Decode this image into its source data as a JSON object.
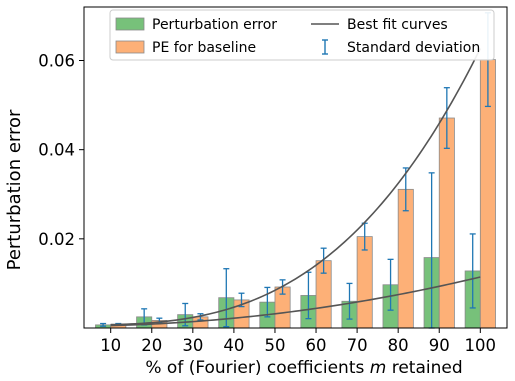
{
  "chart_data": {
    "type": "bar",
    "xlabel_prefix": "% of (Fourier) coefficients ",
    "xlabel_italic": "m",
    "xlabel_suffix": " retained",
    "ylabel": "Perturbation error",
    "categories": [
      "10",
      "20",
      "30",
      "40",
      "50",
      "60",
      "70",
      "80",
      "90",
      "100"
    ],
    "x": [
      10,
      20,
      30,
      40,
      50,
      60,
      70,
      80,
      90,
      100
    ],
    "ylim": [
      0,
      0.072
    ],
    "yticks": [
      0.02,
      0.04,
      0.06
    ],
    "ytick_labels": [
      "0.02",
      "0.04",
      "0.06"
    ],
    "grid": false,
    "legend_position": "top",
    "series": [
      {
        "name": "Perturbation error",
        "color": "#77c17a",
        "values": [
          0.0007,
          0.0025,
          0.003,
          0.0068,
          0.0058,
          0.0073,
          0.006,
          0.0097,
          0.0158,
          0.0128
        ],
        "errors": [
          0.0003,
          0.0018,
          0.0025,
          0.0065,
          0.0033,
          0.0052,
          0.004,
          0.0057,
          0.019,
          0.0083
        ]
      },
      {
        "name": "PE for baseline",
        "color": "#fdb077",
        "values": [
          0.0008,
          0.0017,
          0.0025,
          0.0063,
          0.0092,
          0.0151,
          0.0205,
          0.0311,
          0.0471,
          0.0602
        ],
        "errors": [
          0.0002,
          0.0005,
          0.0007,
          0.0015,
          0.0016,
          0.0028,
          0.003,
          0.0048,
          0.0068,
          0.0105
        ]
      }
    ],
    "fit_curves": [
      {
        "a": 0.00044,
        "b": 1.1e-06,
        "exponent": 2
      },
      {
        "a": 0.0007,
        "b": 6.2e-08,
        "exponent": 3
      }
    ],
    "legend": {
      "items": [
        {
          "label": "Perturbation error",
          "kind": "bar",
          "color": "#77c17a"
        },
        {
          "label": "Best fit curves",
          "kind": "line",
          "color": "#555555"
        },
        {
          "label": "PE for baseline",
          "kind": "bar",
          "color": "#fdb077"
        },
        {
          "label": "Standard deviation",
          "kind": "errorbar",
          "color": "#1f77b4"
        }
      ]
    },
    "errorbar_color": "#1f77b4",
    "curve_color": "#555555"
  }
}
